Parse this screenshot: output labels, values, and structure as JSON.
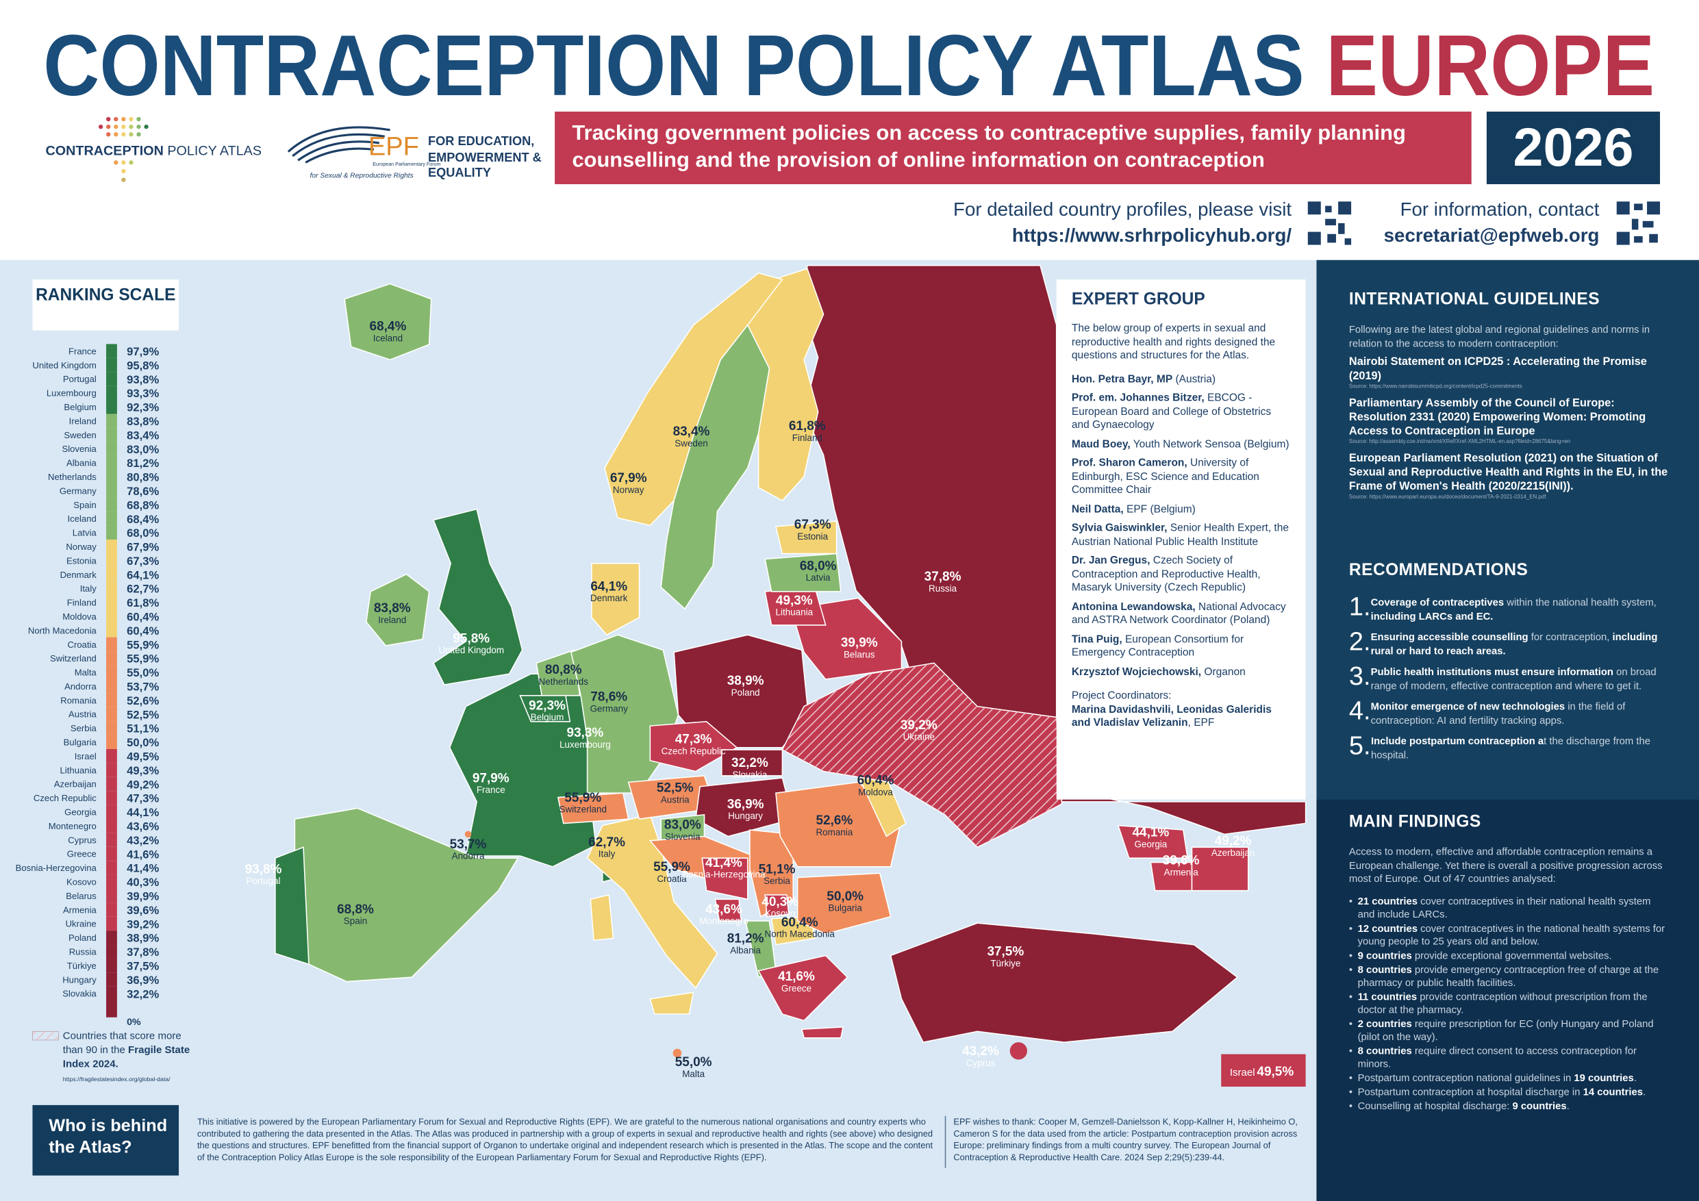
{
  "header": {
    "title_main": "CONTRACEPTION POLICY ATLAS",
    "title_accent": "EUROPE",
    "logo_atlas_bold": "CONTRACEPTION",
    "logo_atlas_light": "POLICY ATLAS",
    "logo_epf": "EPF",
    "logo_epf_line1": "European Parliamentary Forum",
    "logo_epf_line2": "for Sexual & Reproductive Rights",
    "tagline": "FOR EDUCATION, EMPOWERMENT & EQUALITY",
    "banner": "Tracking government policies on access to contraceptive supplies, family planning counselling and the provision of online information on contraception",
    "year": "2026",
    "visit_text": "For detailed country profiles, please visit",
    "visit_url": "https://www.srhrpolicyhub.org/",
    "contact_text": "For information, contact",
    "contact_email": "secretariat@epfweb.org"
  },
  "ranking": {
    "title": "RANKING SCALE",
    "zero_label": "0%",
    "rows": [
      {
        "name": "France",
        "value": "97,9%",
        "color": "#2f7d47"
      },
      {
        "name": "United Kingdom",
        "value": "95,8%",
        "color": "#2f7d47"
      },
      {
        "name": "Portugal",
        "value": "93,8%",
        "color": "#2f7d47"
      },
      {
        "name": "Luxembourg",
        "value": "93,3%",
        "color": "#2f7d47"
      },
      {
        "name": "Belgium",
        "value": "92,3%",
        "color": "#2f7d47"
      },
      {
        "name": "Ireland",
        "value": "83,8%",
        "color": "#86b96f"
      },
      {
        "name": "Sweden",
        "value": "83,4%",
        "color": "#86b96f"
      },
      {
        "name": "Slovenia",
        "value": "83,0%",
        "color": "#86b96f"
      },
      {
        "name": "Albania",
        "value": "81,2%",
        "color": "#86b96f"
      },
      {
        "name": "Netherlands",
        "value": "80,8%",
        "color": "#86b96f"
      },
      {
        "name": "Germany",
        "value": "78,6%",
        "color": "#86b96f"
      },
      {
        "name": "Spain",
        "value": "68,8%",
        "color": "#86b96f"
      },
      {
        "name": "Iceland",
        "value": "68,4%",
        "color": "#86b96f"
      },
      {
        "name": "Latvia",
        "value": "68,0%",
        "color": "#86b96f"
      },
      {
        "name": "Norway",
        "value": "67,9%",
        "color": "#f2d272"
      },
      {
        "name": "Estonia",
        "value": "67,3%",
        "color": "#f2d272"
      },
      {
        "name": "Denmark",
        "value": "64,1%",
        "color": "#f2d272"
      },
      {
        "name": "Italy",
        "value": "62,7%",
        "color": "#f2d272"
      },
      {
        "name": "Finland",
        "value": "61,8%",
        "color": "#f2d272"
      },
      {
        "name": "Moldova",
        "value": "60,4%",
        "color": "#f2d272"
      },
      {
        "name": "North Macedonia",
        "value": "60,4%",
        "color": "#f2d272"
      },
      {
        "name": "Croatia",
        "value": "55,9%",
        "color": "#f08c5c"
      },
      {
        "name": "Switzerland",
        "value": "55,9%",
        "color": "#f08c5c"
      },
      {
        "name": "Malta",
        "value": "55,0%",
        "color": "#f08c5c"
      },
      {
        "name": "Andorra",
        "value": "53,7%",
        "color": "#f08c5c"
      },
      {
        "name": "Romania",
        "value": "52,6%",
        "color": "#f08c5c"
      },
      {
        "name": "Austria",
        "value": "52,5%",
        "color": "#f08c5c"
      },
      {
        "name": "Serbia",
        "value": "51,1%",
        "color": "#f08c5c"
      },
      {
        "name": "Bulgaria",
        "value": "50,0%",
        "color": "#f08c5c"
      },
      {
        "name": "Israel",
        "value": "49,5%",
        "color": "#c23a50"
      },
      {
        "name": "Lithuania",
        "value": "49,3%",
        "color": "#c23a50"
      },
      {
        "name": "Azerbaijan",
        "value": "49,2%",
        "color": "#c23a50"
      },
      {
        "name": "Czech Republic",
        "value": "47,3%",
        "color": "#c23a50"
      },
      {
        "name": "Georgia",
        "value": "44,1%",
        "color": "#c23a50"
      },
      {
        "name": "Montenegro",
        "value": "43,6%",
        "color": "#c23a50"
      },
      {
        "name": "Cyprus",
        "value": "43,2%",
        "color": "#c23a50"
      },
      {
        "name": "Greece",
        "value": "41,6%",
        "color": "#c23a50"
      },
      {
        "name": "Bosnia-Herzegovina",
        "value": "41,4%",
        "color": "#c23a50"
      },
      {
        "name": "Kosovo",
        "value": "40,3%",
        "color": "#c23a50"
      },
      {
        "name": "Belarus",
        "value": "39,9%",
        "color": "#c23a50"
      },
      {
        "name": "Armenia",
        "value": "39,6%",
        "color": "#c23a50"
      },
      {
        "name": "Ukraine",
        "value": "39,2%",
        "color": "#c23a50"
      },
      {
        "name": "Poland",
        "value": "38,9%",
        "color": "#8c2035"
      },
      {
        "name": "Russia",
        "value": "37,8%",
        "color": "#8c2035"
      },
      {
        "name": "Türkiye",
        "value": "37,5%",
        "color": "#8c2035"
      },
      {
        "name": "Hungary",
        "value": "36,9%",
        "color": "#8c2035"
      },
      {
        "name": "Slovakia",
        "value": "32,2%",
        "color": "#8c2035"
      }
    ],
    "fragile_text": "Countries that score more than 90 in the",
    "fragile_bold": "Fragile State Index 2024.",
    "fragile_source": "https://fragilestatesindex.org/global-data/"
  },
  "expert_group": {
    "title": "EXPERT GROUP",
    "intro": "The below group of experts in sexual and reproductive health and rights designed the questions and structures for the Atlas.",
    "members": [
      {
        "name": "Hon. Petra Bayr, MP",
        "role": " (Austria)"
      },
      {
        "name": "Prof. em. Johannes Bitzer,",
        "role": " EBCOG - European Board and College of Obstetrics and Gynaecology"
      },
      {
        "name": "Maud Boey,",
        "role": " Youth Network Sensoa (Belgium)"
      },
      {
        "name": "Prof. Sharon Cameron,",
        "role": " University of Edinburgh, ESC Science and Education Committee Chair"
      },
      {
        "name": "Neil Datta,",
        "role": " EPF (Belgium)"
      },
      {
        "name": "Sylvia Gaiswinkler,",
        "role": " Senior Health Expert, the Austrian National Public Health Institute"
      },
      {
        "name": "Dr. Jan Gregus,",
        "role": " Czech Society of Contraception and Reproductive Health, Masaryk University (Czech Republic)"
      },
      {
        "name": "Antonina Lewandowska,",
        "role": " National Advocacy and ASTRA Network Coordinator (Poland)"
      },
      {
        "name": "Tina Puig,",
        "role": " European Consortium for Emergency Contraception"
      },
      {
        "name": "Krzysztof Wojciechowski,",
        "role": "  Organon"
      }
    ],
    "coordinators_label": "Project Coordinators:",
    "coordinators_names": "Marina Davidashvili, Leonidas Galeridis and Vladislav Velizanin",
    "coordinators_org": ", EPF"
  },
  "guidelines": {
    "title": "INTERNATIONAL GUIDELINES",
    "intro": "Following are the latest global and regional guidelines and norms in relation to the access to modern contraception:",
    "items": [
      {
        "title": "Nairobi Statement on ICPD25 : Accelerating the Promise (2019)",
        "source": "Source: https://www.nairobisummiticpd.org/content/icpd25-commitments"
      },
      {
        "title": "Parliamentary Assembly of the Council of Europe: Resolution 2331 (2020) Empowering Women: Promoting Access to Contraception in Europe",
        "source": "Source: http://assembly.coe.int/nw/xml/XRef/Xref-XML2HTML-en.asp?fileid=28675&lang=en"
      },
      {
        "title": "European Parliament Resolution (2021) on the Situation of Sexual and Reproductive Health and Rights in the EU, in the Frame of Women's Health (2020/2215(INI)).",
        "source": "Source: https://www.europarl.europa.eu/doceo/document/TA-9-2021-0314_EN.pdf"
      }
    ]
  },
  "recommendations": {
    "title": "RECOMMENDATIONS",
    "items": [
      {
        "number": "1.",
        "parts": [
          {
            "text": "Coverage of contraceptives",
            "bold": true
          },
          {
            "text": " within the national health system, ",
            "bold": false
          },
          {
            "text": "including LARCs and EC.",
            "bold": true
          }
        ]
      },
      {
        "number": "2.",
        "parts": [
          {
            "text": "Ensuring accessible counselling",
            "bold": true
          },
          {
            "text": " for contraception, ",
            "bold": false
          },
          {
            "text": "including rural or hard to reach areas.",
            "bold": true
          }
        ]
      },
      {
        "number": "3.",
        "parts": [
          {
            "text": "Public health institutions must ensure information",
            "bold": true
          },
          {
            "text": " on broad range of modern, effective contraception and where to get it.",
            "bold": false
          }
        ]
      },
      {
        "number": "4.",
        "parts": [
          {
            "text": "Monitor emergence of new technologies",
            "bold": true
          },
          {
            "text": " in the field of contraception: AI and fertility tracking apps.",
            "bold": false
          }
        ]
      },
      {
        "number": "5.",
        "parts": [
          {
            "text": "Include postpartum contraception a",
            "bold": true
          },
          {
            "text": "t the discharge from the hospital.",
            "bold": false
          }
        ]
      }
    ]
  },
  "findings": {
    "title": "MAIN FINDINGS",
    "intro": "Access to modern, effective and affordable contraception remains a European challenge. Yet there is overall a positive progression across most of Europe. Out of 47 countries analysed:",
    "items": [
      [
        {
          "text": "21 countries",
          "bold": true
        },
        {
          "text": " cover contraceptives in their national health system and include LARCs.",
          "bold": false
        }
      ],
      [
        {
          "text": "12 countries",
          "bold": true
        },
        {
          "text": " cover contraceptives in the national health systems for young people to 25 years old and below.",
          "bold": false
        }
      ],
      [
        {
          "text": "9 countries",
          "bold": true
        },
        {
          "text": " provide exceptional governmental websites.",
          "bold": false
        }
      ],
      [
        {
          "text": "8 countries",
          "bold": true
        },
        {
          "text": " provide emergency contraception free of charge at the pharmacy or public health facilities.",
          "bold": false
        }
      ],
      [
        {
          "text": "11 countries",
          "bold": true
        },
        {
          "text": " provide contraception without prescription from the doctor at the pharmacy.",
          "bold": false
        }
      ],
      [
        {
          "text": "2 countries",
          "bold": true
        },
        {
          "text": " require prescription for EC (only Hungary and Poland (pilot on the way).",
          "bold": false
        }
      ],
      [
        {
          "text": "8 countries",
          "bold": true
        },
        {
          "text": " require direct consent to access contraception for minors.",
          "bold": false
        }
      ],
      [
        {
          "text": "Postpartum contraception national guidelines in ",
          "bold": false
        },
        {
          "text": "19 countries",
          "bold": true
        },
        {
          "text": ".",
          "bold": false
        }
      ],
      [
        {
          "text": "Postpartum contraception at hospital discharge in ",
          "bold": false
        },
        {
          "text": "14 countries",
          "bold": true
        },
        {
          "text": ".",
          "bold": false
        }
      ],
      [
        {
          "text": "Counselling at hospital discharge: ",
          "bold": false
        },
        {
          "text": "9 countries",
          "bold": true
        },
        {
          "text": ".",
          "bold": false
        }
      ]
    ]
  },
  "footer": {
    "who_title": "Who is behind the Atlas?",
    "about": "This initiative is powered by the European Parliamentary Forum for Sexual and Reproductive Rights (EPF). We are grateful to the numerous national organisations and country experts who contributed to gathering the data presented in the Atlas. The Atlas was produced in partnership with a group of experts in sexual and reproductive health and rights (see above) who designed the questions and structures. EPF benefitted from the financial support of Organon to undertake original and independent research which is presented in the Atlas. The scope and the content of the Contraception Policy Atlas Europe is the sole responsibility of the European Parliamentary Forum for Sexual and Reproductive Rights (EPF).",
    "thanks": "EPF wishes to thank: Cooper M, Gemzell-Danielsson K, Kopp-Kallner H, Heikinheimo O, Cameron S for the data used from the article: Postpartum contraception provision across Europe: preliminary findings from a multi country survey. The European Journal of Contraception & Reproductive Health Care. 2024 Sep 2;29(5):239-44."
  }
}
